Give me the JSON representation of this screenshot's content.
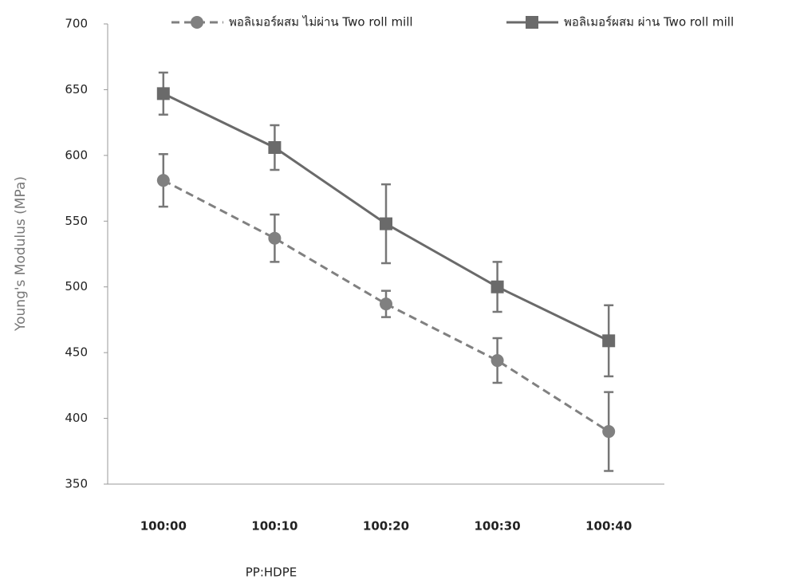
{
  "chart_data": {
    "type": "line",
    "x_label": "PP:HDPE",
    "y_label": "Young's Modulus (MPa)",
    "categories": [
      "100:00",
      "100:10",
      "100:20",
      "100:30",
      "100:40"
    ],
    "series": [
      {
        "name": "พอลิเมอร์ผสม ไม่ผ่าน Two roll mill",
        "color": "#808080",
        "dashed": true,
        "marker": "circle",
        "values": [
          581,
          537,
          487,
          444,
          390
        ],
        "errors": [
          20,
          18,
          10,
          17,
          30
        ]
      },
      {
        "name": "พอลิเมอร์ผสม ผ่าน Two roll mill",
        "color": "#6a6a6a",
        "dashed": false,
        "marker": "square",
        "values": [
          647,
          606,
          548,
          500,
          459
        ],
        "errors": [
          16,
          17,
          30,
          19,
          27
        ]
      }
    ],
    "ylim": [
      350,
      700
    ],
    "yticks": [
      350,
      400,
      450,
      500,
      550,
      600,
      650,
      700
    ]
  }
}
